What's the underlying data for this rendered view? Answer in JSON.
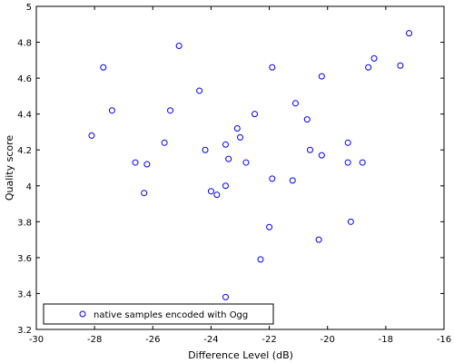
{
  "chart_data": {
    "type": "scatter",
    "xlabel": "Difference Level (dB)",
    "ylabel": "Quality score",
    "xlim": [
      -30,
      -16
    ],
    "ylim": [
      3.2,
      5
    ],
    "xticks": [
      -30,
      -28,
      -26,
      -24,
      -22,
      -20,
      -18,
      -16
    ],
    "yticks": [
      3.2,
      3.4,
      3.6,
      3.8,
      4,
      4.2,
      4.4,
      4.6,
      4.8,
      5
    ],
    "xtick_labels": [
      "-30",
      "-28",
      "-26",
      "-24",
      "-22",
      "-20",
      "-18",
      "-16"
    ],
    "ytick_labels": [
      "3.2",
      "3.4",
      "3.6",
      "3.8",
      "4",
      "4.2",
      "4.4",
      "4.6",
      "4.8",
      "5"
    ],
    "grid": false,
    "legend_position": "bottom-left",
    "marker_color": "#0000ff",
    "series": [
      {
        "name": "native samples encoded with Ogg",
        "marker": "circle-open",
        "points": [
          [
            -28.1,
            4.28
          ],
          [
            -27.7,
            4.66
          ],
          [
            -27.4,
            4.42
          ],
          [
            -26.6,
            4.13
          ],
          [
            -26.2,
            4.12
          ],
          [
            -26.3,
            3.96
          ],
          [
            -25.6,
            4.24
          ],
          [
            -25.4,
            4.42
          ],
          [
            -25.1,
            4.78
          ],
          [
            -24.4,
            4.53
          ],
          [
            -24.2,
            4.2
          ],
          [
            -24.0,
            3.97
          ],
          [
            -23.8,
            3.95
          ],
          [
            -23.5,
            4.0
          ],
          [
            -23.5,
            4.23
          ],
          [
            -23.4,
            4.15
          ],
          [
            -23.1,
            4.32
          ],
          [
            -23.0,
            4.27
          ],
          [
            -22.8,
            4.13
          ],
          [
            -22.5,
            4.4
          ],
          [
            -22.3,
            3.59
          ],
          [
            -22.0,
            3.77
          ],
          [
            -21.9,
            4.04
          ],
          [
            -21.9,
            4.66
          ],
          [
            -21.2,
            4.03
          ],
          [
            -21.1,
            4.46
          ],
          [
            -20.7,
            4.37
          ],
          [
            -20.6,
            4.2
          ],
          [
            -20.3,
            3.7
          ],
          [
            -20.2,
            4.17
          ],
          [
            -20.2,
            4.61
          ],
          [
            -19.3,
            4.24
          ],
          [
            -19.3,
            4.13
          ],
          [
            -19.2,
            3.8
          ],
          [
            -18.8,
            4.13
          ],
          [
            -18.6,
            4.66
          ],
          [
            -18.4,
            4.71
          ],
          [
            -17.5,
            4.67
          ],
          [
            -17.2,
            4.85
          ],
          [
            -23.5,
            3.38
          ]
        ]
      }
    ]
  }
}
